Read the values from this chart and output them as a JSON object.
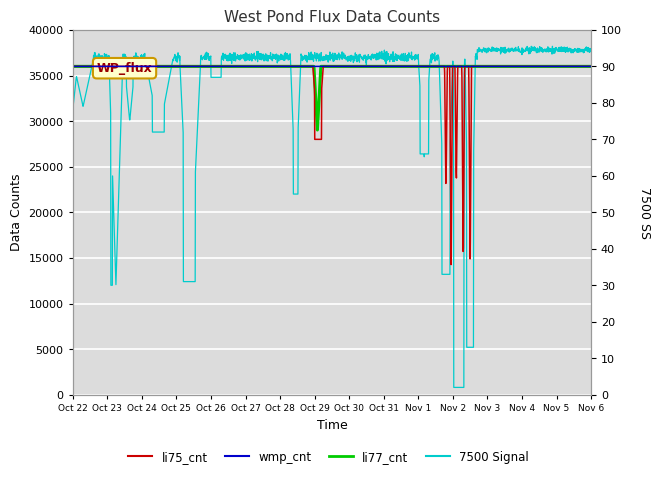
{
  "title": "West Pond Flux Data Counts",
  "xlabel": "Time",
  "ylabel": "Data Counts",
  "ylabel_right": "7500 SS",
  "ylim_left": [
    0,
    40000
  ],
  "ylim_right": [
    0,
    100
  ],
  "background_color": "#dcdcdc",
  "title_fontsize": 11,
  "label_fontsize": 9,
  "tick_fontsize": 8,
  "annotation_text": "WP_flux",
  "x_tick_labels": [
    "Oct 22",
    "Oct 23",
    "Oct 24",
    "Oct 25",
    "Oct 26",
    "Oct 27",
    "Oct 28",
    "Oct 29",
    "Oct 30",
    "Oct 31",
    "Nov 1",
    "Nov 2",
    "Nov 3",
    "Nov 4",
    "Nov 5",
    "Nov 6"
  ],
  "li77_cnt_value": 36000,
  "legend_labels": [
    "li75_cnt",
    "wmp_cnt",
    "li77_cnt",
    "7500 Signal"
  ],
  "li75_color": "#cc0000",
  "wmp_color": "#0000cc",
  "li77_color": "#00cc00",
  "signal_color": "#00cccc",
  "n_days": 15
}
